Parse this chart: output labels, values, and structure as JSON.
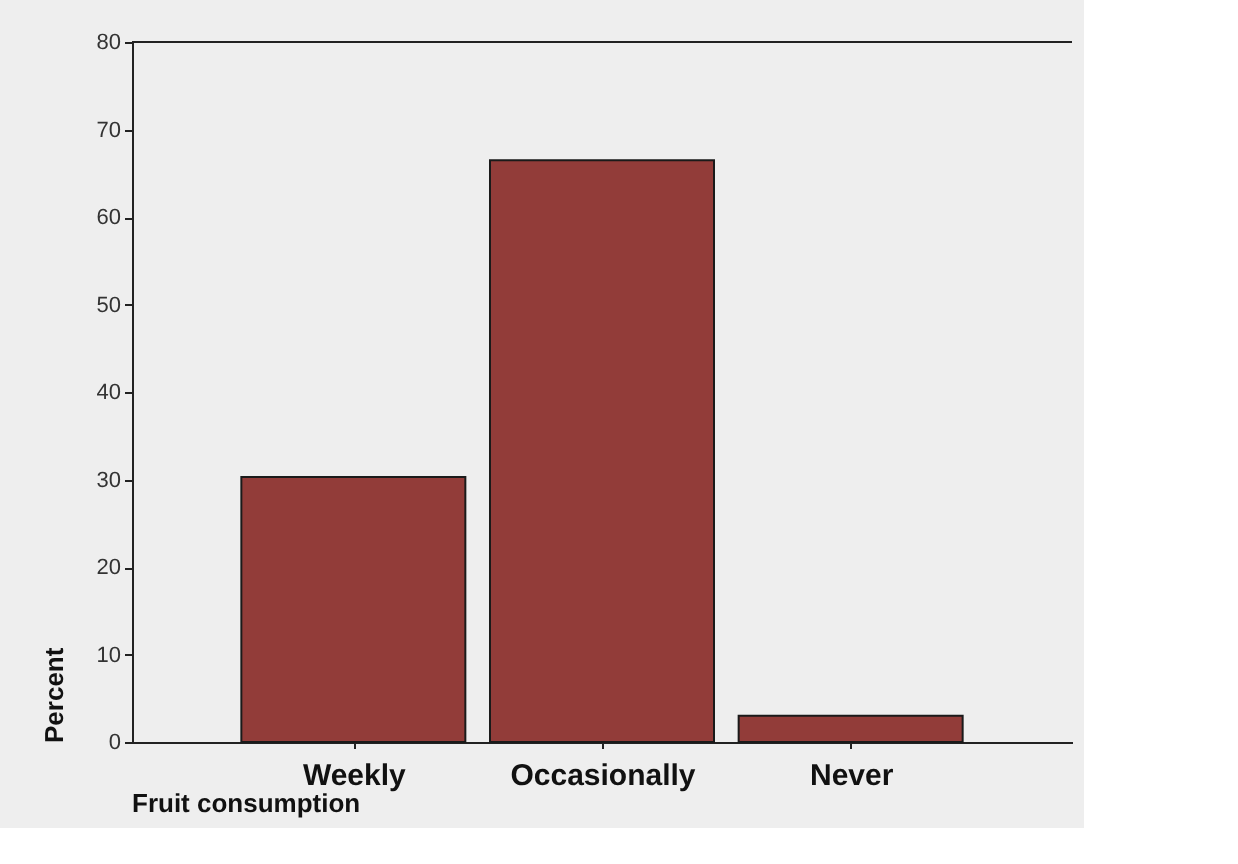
{
  "chart_data": {
    "type": "bar",
    "xlabel": "Fruit consumption",
    "ylabel": "Percent",
    "categories": [
      "Weekly",
      "Occasionally",
      "Never"
    ],
    "values": [
      30.3,
      66.5,
      3.0
    ],
    "color": "#923c39",
    "ylim": [
      0,
      80
    ],
    "yticks": [
      0,
      10,
      20,
      30,
      40,
      50,
      60,
      70,
      80
    ],
    "grid": false
  }
}
